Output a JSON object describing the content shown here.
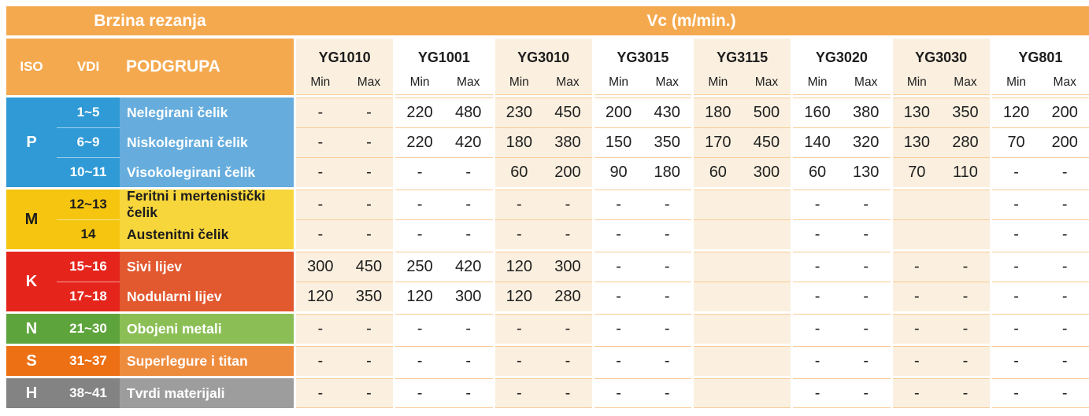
{
  "table": {
    "title_left": "Brzina rezanja",
    "title_right": "Vc (m/min.)",
    "left_headers": {
      "iso": "ISO",
      "vdi": "VDI",
      "podgrupa": "PODGRUPA"
    },
    "min_label": "Min",
    "max_label": "Max",
    "grades": [
      "YG1010",
      "YG1001",
      "YG3010",
      "YG3015",
      "YG3115",
      "YG3020",
      "YG3030",
      "YG801"
    ],
    "colors_note": {
      "header_orange": "#F5A94F",
      "beige_column": "#FBF0DF",
      "grid_line": "#F9CA96"
    },
    "sections": [
      {
        "iso": "P",
        "colors": {
          "dark": "#2F9AD5",
          "light": "#66ADDE",
          "text": "#FFFFFF"
        },
        "rows": [
          {
            "vdi": "1~5",
            "podgrupa": "Nelegirani čelik",
            "values": [
              [
                "-",
                "-"
              ],
              [
                "220",
                "480"
              ],
              [
                "230",
                "450"
              ],
              [
                "200",
                "430"
              ],
              [
                "180",
                "500"
              ],
              [
                "160",
                "380"
              ],
              [
                "130",
                "350"
              ],
              [
                "120",
                "200"
              ]
            ]
          },
          {
            "vdi": "6~9",
            "podgrupa": "Niskolegirani čelik",
            "values": [
              [
                "-",
                "-"
              ],
              [
                "220",
                "420"
              ],
              [
                "180",
                "380"
              ],
              [
                "150",
                "350"
              ],
              [
                "170",
                "450"
              ],
              [
                "140",
                "320"
              ],
              [
                "130",
                "280"
              ],
              [
                "70",
                "200"
              ]
            ]
          },
          {
            "vdi": "10~11",
            "podgrupa": "Visokolegirani čelik",
            "values": [
              [
                "-",
                "-"
              ],
              [
                "-",
                "-"
              ],
              [
                "60",
                "200"
              ],
              [
                "90",
                "180"
              ],
              [
                "60",
                "300"
              ],
              [
                "60",
                "130"
              ],
              [
                "70",
                "110"
              ],
              [
                "-",
                "-"
              ]
            ]
          }
        ]
      },
      {
        "iso": "M",
        "colors": {
          "dark": "#F6C50F",
          "light": "#F7D63C",
          "text": "#1D1D1D"
        },
        "rows": [
          {
            "vdi": "12~13",
            "podgrupa": "Feritni i mertenistički čelik",
            "values": [
              [
                "-",
                "-"
              ],
              [
                "-",
                "-"
              ],
              [
                "-",
                "-"
              ],
              [
                "-",
                "-"
              ],
              [
                "",
                ""
              ],
              [
                "-",
                "-"
              ],
              [
                "",
                ""
              ],
              [
                "-",
                "-"
              ]
            ]
          },
          {
            "vdi": "14",
            "podgrupa": "Austenitni čelik",
            "values": [
              [
                "-",
                "-"
              ],
              [
                "-",
                "-"
              ],
              [
                "-",
                "-"
              ],
              [
                "-",
                "-"
              ],
              [
                "",
                ""
              ],
              [
                "-",
                "-"
              ],
              [
                "",
                ""
              ],
              [
                "-",
                "-"
              ]
            ]
          }
        ]
      },
      {
        "iso": "K",
        "colors": {
          "dark": "#E5251C",
          "light": "#E2582F",
          "text": "#FFFFFF"
        },
        "rows": [
          {
            "vdi": "15~16",
            "podgrupa": "Sivi lijev",
            "values": [
              [
                "300",
                "450"
              ],
              [
                "250",
                "420"
              ],
              [
                "120",
                "300"
              ],
              [
                "-",
                "-"
              ],
              [
                "",
                ""
              ],
              [
                "-",
                "-"
              ],
              [
                "-",
                "-"
              ],
              [
                "-",
                "-"
              ]
            ]
          },
          {
            "vdi": "17~18",
            "podgrupa": "Nodularni lijev",
            "values": [
              [
                "120",
                "350"
              ],
              [
                "120",
                "300"
              ],
              [
                "120",
                "280"
              ],
              [
                "-",
                "-"
              ],
              [
                "",
                ""
              ],
              [
                "-",
                "-"
              ],
              [
                "-",
                "-"
              ],
              [
                "-",
                "-"
              ]
            ]
          }
        ]
      },
      {
        "iso": "N",
        "colors": {
          "dark": "#5EA43C",
          "light": "#8BBF55",
          "text": "#FFFFFF"
        },
        "rows": [
          {
            "vdi": "21~30",
            "podgrupa": "Obojeni metali",
            "values": [
              [
                "-",
                "-"
              ],
              [
                "-",
                "-"
              ],
              [
                "-",
                "-"
              ],
              [
                "-",
                "-"
              ],
              [
                "",
                ""
              ],
              [
                "-",
                "-"
              ],
              [
                "-",
                "-"
              ],
              [
                "-",
                "-"
              ]
            ]
          }
        ]
      },
      {
        "iso": "S",
        "colors": {
          "dark": "#ED7014",
          "light": "#EE8C3E",
          "text": "#FFFFFF"
        },
        "rows": [
          {
            "vdi": "31~37",
            "podgrupa": "Superlegure i titan",
            "values": [
              [
                "-",
                "-"
              ],
              [
                "-",
                "-"
              ],
              [
                "-",
                "-"
              ],
              [
                "-",
                "-"
              ],
              [
                "",
                ""
              ],
              [
                "-",
                "-"
              ],
              [
                "-",
                "-"
              ],
              [
                "-",
                "-"
              ]
            ]
          }
        ]
      },
      {
        "iso": "H",
        "colors": {
          "dark": "#838383",
          "light": "#9D9D9D",
          "text": "#FFFFFF"
        },
        "rows": [
          {
            "vdi": "38~41",
            "podgrupa": "Tvrdi materijali",
            "values": [
              [
                "-",
                "-"
              ],
              [
                "-",
                "-"
              ],
              [
                "-",
                "-"
              ],
              [
                "-",
                "-"
              ],
              [
                "",
                ""
              ],
              [
                "-",
                "-"
              ],
              [
                "-",
                "-"
              ],
              [
                "-",
                "-"
              ]
            ]
          }
        ]
      }
    ]
  }
}
